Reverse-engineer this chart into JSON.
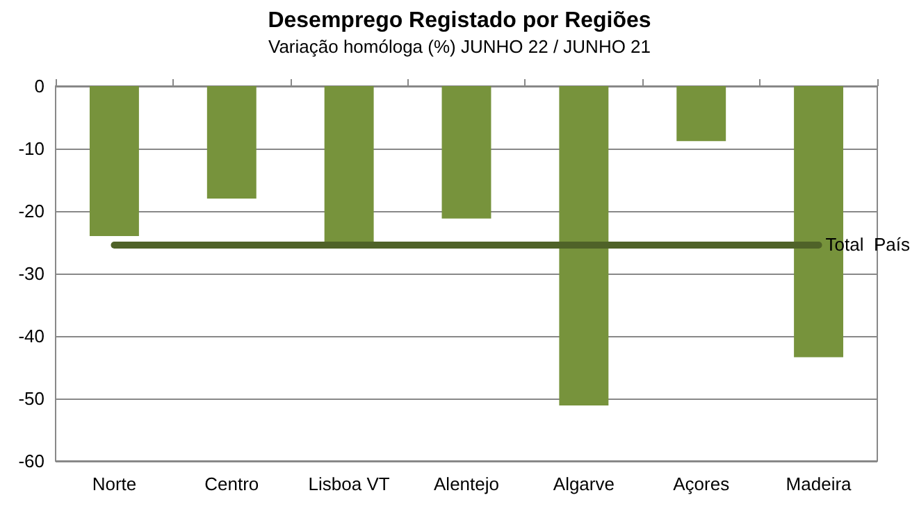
{
  "chart_data": {
    "type": "bar",
    "title": "Desemprego Registado por Regiões",
    "subtitle": "Variação homóloga (%) JUNHO 22 / JUNHO 21",
    "categories": [
      "Norte",
      "Centro",
      "Lisboa VT",
      "Alentejo",
      "Algarve",
      "Açores",
      "Madeira"
    ],
    "values": [
      -24,
      -18,
      -25.5,
      -21.2,
      -51.1,
      -8.8,
      -43.4
    ],
    "color": "#77933c",
    "ylim": [
      -60,
      0
    ],
    "yticks": [
      -60,
      -50,
      -40,
      -30,
      -20,
      -10,
      0
    ],
    "grid": "y",
    "ref_lines": [
      {
        "axis": "y",
        "value": -25.3,
        "label": "Total  País",
        "color": "#4f6228"
      }
    ]
  }
}
